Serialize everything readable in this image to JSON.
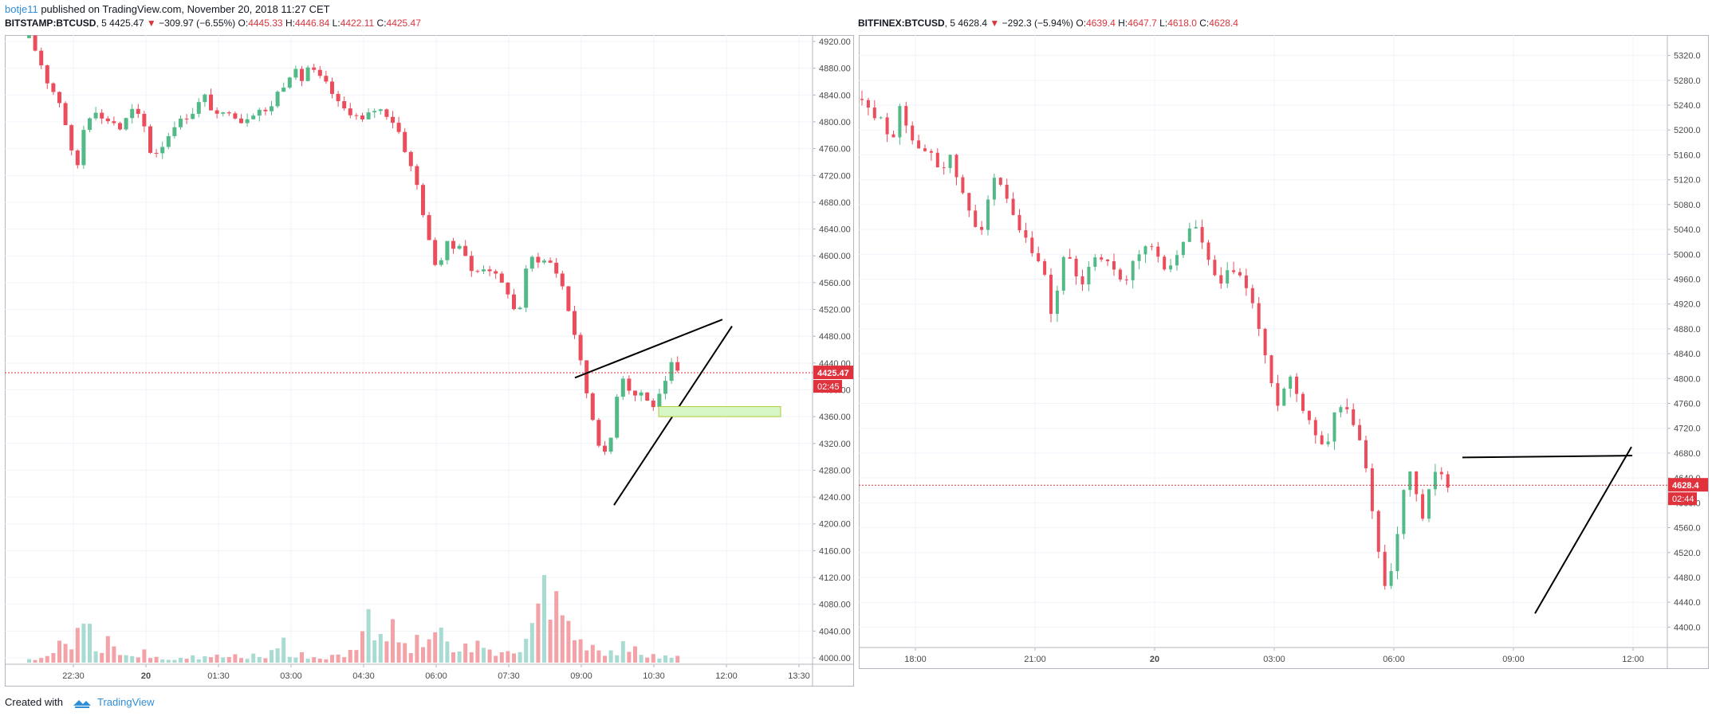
{
  "header": {
    "user": "botje11",
    "published": "published on TradingView.com, November 20, 2018 11:27 CET"
  },
  "footer": {
    "created_with": "Created with",
    "brand": "TradingView"
  },
  "colors": {
    "up": "#53b987",
    "down": "#eb4d5c",
    "up_vol": "#a8dbd2",
    "down_vol": "#f3a3a7",
    "price_line": "#e0323c",
    "zone": "#d6f7c5"
  },
  "chart_data": [
    {
      "type": "candlestick",
      "symbol": "BITSTAMP:BTCUSD",
      "interval": "5",
      "last": "4425.47",
      "change": "−309.97 (−6.55%)",
      "ohlc": {
        "o_label": "O:",
        "o": "4445.33",
        "h_label": "H:",
        "h": "4446.84",
        "l_label": "L:",
        "l": "4422.11",
        "c_label": "C:",
        "c": "4425.47"
      },
      "price_label": "4425.47",
      "countdown": "02:45",
      "ylim": [
        4000,
        4920
      ],
      "yticks": [
        "4920.00",
        "4880.00",
        "4840.00",
        "4800.00",
        "4760.00",
        "4720.00",
        "4680.00",
        "4640.00",
        "4600.00",
        "4560.00",
        "4520.00",
        "4480.00",
        "4440.00",
        "4400.00",
        "4360.00",
        "4320.00",
        "4280.00",
        "4240.00",
        "4200.00",
        "4160.00",
        "4120.00",
        "4080.00",
        "4040.00",
        "4000.00"
      ],
      "xticks": [
        "22:30",
        "20",
        "01:30",
        "03:00",
        "04:30",
        "06:00",
        "07:30",
        "09:00",
        "10:30",
        "12:00",
        "13:30"
      ],
      "close_path": [
        4925,
        4905,
        4880,
        4850,
        4842,
        4815,
        4760,
        4730,
        4790,
        4812,
        4820,
        4795,
        4810,
        4785,
        4800,
        4818,
        4808,
        4790,
        4745,
        4760,
        4770,
        4795,
        4800,
        4808,
        4815,
        4830,
        4840,
        4810,
        4805,
        4820,
        4812,
        4800,
        4808,
        4815,
        4820,
        4810,
        4840,
        4850,
        4870,
        4875,
        4862,
        4885,
        4870,
        4862,
        4850,
        4830,
        4820,
        4815,
        4808,
        4800,
        4815,
        4820,
        4815,
        4805,
        4790,
        4760,
        4730,
        4700,
        4650,
        4600,
        4580,
        4620,
        4610,
        4620,
        4600,
        4570,
        4580,
        4585,
        4575,
        4560,
        4550,
        4520,
        4525,
        4590,
        4600,
        4590,
        4595,
        4580,
        4560,
        4520,
        4480,
        4430,
        4380,
        4340,
        4300,
        4310,
        4390,
        4420,
        4400,
        4390,
        4400,
        4370,
        4385,
        4400,
        4440,
        4425
      ],
      "volume_path": [
        5,
        8,
        6,
        15,
        22,
        25,
        30,
        45,
        50,
        38,
        20,
        28,
        70,
        18,
        12,
        10,
        8,
        15,
        12,
        10,
        8,
        6,
        9,
        10,
        14,
        8,
        12,
        10,
        9,
        8,
        10,
        6,
        7,
        12,
        8,
        10,
        20,
        45,
        10,
        8,
        12,
        10,
        8,
        6,
        9,
        10,
        12,
        15,
        35,
        55,
        70,
        60,
        40,
        48,
        35,
        25,
        18,
        30,
        22,
        50,
        40,
        28,
        18,
        14,
        24,
        30,
        20,
        16,
        12,
        20,
        22,
        10,
        14,
        30,
        85,
        120,
        110,
        90,
        70,
        60,
        40,
        30,
        35,
        25,
        18,
        20,
        15,
        22,
        10,
        26,
        12,
        10,
        8,
        10,
        6,
        12
      ],
      "annotations": {
        "trend_lines": 3,
        "zone_range": [
          4360,
          4375
        ]
      }
    },
    {
      "type": "candlestick",
      "symbol": "BITFINEX:BTCUSD",
      "interval": "5",
      "last": "4628.4",
      "change": "−292.3 (−5.94%)",
      "ohlc": {
        "o_label": "O:",
        "o": "4639.4",
        "h_label": "H:",
        "h": "4647.7",
        "l_label": "L:",
        "l": "4618.0",
        "c_label": "C:",
        "c": "4628.4"
      },
      "price_label": "4628.4",
      "countdown": "02:44",
      "ylim": [
        4380,
        5340
      ],
      "yticks": [
        "5320.0",
        "5280.0",
        "5240.0",
        "5200.0",
        "5160.0",
        "5120.0",
        "5080.0",
        "5040.0",
        "5000.0",
        "4960.0",
        "4920.0",
        "4880.0",
        "4840.0",
        "4800.0",
        "4760.0",
        "4720.0",
        "4680.0",
        "4640.0",
        "4600.0",
        "4560.0",
        "4520.0",
        "4480.0",
        "4440.0",
        "4400.0"
      ],
      "xticks": [
        "18:00",
        "21:00",
        "20",
        "03:00",
        "06:00",
        "09:00",
        "12:00"
      ],
      "close_path": [
        5250,
        5230,
        5215,
        5230,
        5200,
        5170,
        5245,
        5220,
        5190,
        5170,
        5160,
        5175,
        5150,
        5130,
        5165,
        5140,
        5110,
        5080,
        5060,
        5040,
        5050,
        5110,
        5120,
        5100,
        5080,
        5050,
        5030,
        5020,
        5000,
        4980,
        4960,
        4900,
        4940,
        5000,
        4990,
        4960,
        4940,
        4980,
        5000,
        4990,
        5000,
        4975,
        4960,
        4940,
        4980,
        4990,
        5010,
        5020,
        5000,
        4985,
        4975,
        4990,
        5000,
        5030,
        5050,
        5040,
        5010,
        4980,
        4960,
        4950,
        4970,
        4975,
        4960,
        4950,
        4920,
        4880,
        4840,
        4790,
        4760,
        4780,
        4810,
        4780,
        4760,
        4740,
        4720,
        4700,
        4680,
        4740,
        4760,
        4750,
        4740,
        4720,
        4680,
        4630,
        4570,
        4490,
        4460,
        4510,
        4560,
        4640,
        4650,
        4600,
        4570,
        4620,
        4650,
        4640,
        4628
      ],
      "volume_path": [],
      "annotations": {
        "trend_lines": 2
      }
    }
  ]
}
